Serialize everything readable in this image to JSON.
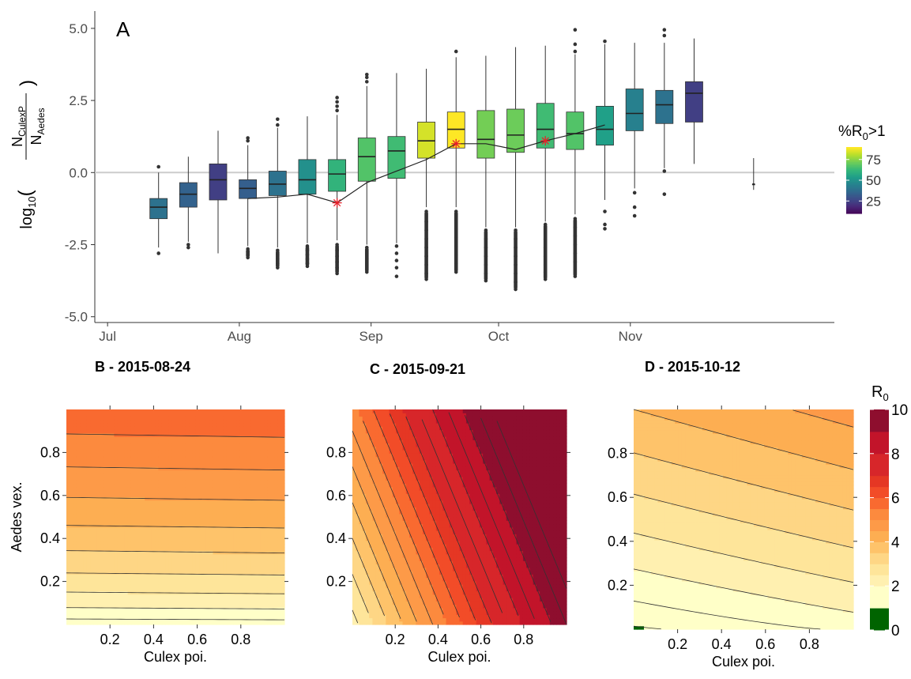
{
  "chart_data": [
    {
      "type": "box",
      "panel_label": "A",
      "ylabel": "log10(N_CulexP / N_Aedes)",
      "ylim": [
        -5.2,
        5.6
      ],
      "yticks": [
        -5.0,
        -2.5,
        0.0,
        2.5,
        5.0
      ],
      "ytick_labels": [
        "-5.0",
        "-2.5",
        "0.0",
        "2.5",
        "5.0"
      ],
      "x_tick_labels": [
        "Jul",
        "Aug",
        "Sep",
        "Oct",
        "Nov"
      ],
      "x_tick_dates": [
        "2015-07-01",
        "2015-08-01",
        "2015-09-01",
        "2015-10-01",
        "2015-11-01"
      ],
      "xlim": [
        "2015-06-28",
        "2015-12-19"
      ],
      "reference_line": 0.0,
      "grid": false,
      "legend": {
        "title": "%R0>1",
        "placement": "right",
        "ticks": [
          75,
          50,
          25
        ],
        "colormap": "viridis",
        "range": [
          10,
          90
        ]
      },
      "boxes": [
        {
          "date": "2015-07-13",
          "q1": -1.6,
          "median": -1.2,
          "q3": -0.9,
          "whisker_low": -2.6,
          "whisker_high": 0.0,
          "pct_r0_gt1": 40,
          "outliers": [
            0.2,
            -2.8
          ]
        },
        {
          "date": "2015-07-20",
          "q1": -1.2,
          "median": -0.75,
          "q3": -0.35,
          "whisker_low": -2.4,
          "whisker_high": 0.55,
          "pct_r0_gt1": 35,
          "outliers": [
            -2.5,
            -2.6
          ]
        },
        {
          "date": "2015-07-27",
          "q1": -0.95,
          "median": -0.25,
          "q3": 0.3,
          "whisker_low": -2.8,
          "whisker_high": 1.45,
          "pct_r0_gt1": 25,
          "outliers": []
        },
        {
          "date": "2015-08-03",
          "q1": -0.9,
          "median": -0.55,
          "q3": -0.25,
          "whisker_low": -2.55,
          "whisker_high": 0.95,
          "pct_r0_gt1": 34,
          "outliers": [
            1.1,
            1.2,
            -2.65,
            -2.75,
            -2.85,
            -2.95
          ]
        },
        {
          "date": "2015-08-10",
          "q1": -0.8,
          "median": -0.4,
          "q3": 0.05,
          "whisker_low": -2.6,
          "whisker_high": 1.55,
          "pct_r0_gt1": 40,
          "outliers": [
            1.85,
            1.65,
            -2.7,
            -2.85,
            -3.0,
            -3.15,
            -3.3
          ]
        },
        {
          "date": "2015-08-17",
          "q1": -0.75,
          "median": -0.25,
          "q3": 0.45,
          "whisker_low": -2.45,
          "whisker_high": 1.95,
          "pct_r0_gt1": 50,
          "outliers": [
            -2.55,
            -2.7,
            -2.85,
            -3.0,
            -3.15,
            -3.25
          ]
        },
        {
          "date": "2015-08-24",
          "q1": -0.65,
          "median": -0.05,
          "q3": 0.45,
          "whisker_low": -2.35,
          "whisker_high": 2.0,
          "pct_r0_gt1": 62,
          "outliers": [
            2.15,
            2.3,
            2.45,
            2.6,
            -2.5,
            -2.7,
            -2.9,
            -3.1,
            -3.3,
            -3.5
          ]
        },
        {
          "date": "2015-08-31",
          "q1": -0.3,
          "median": 0.55,
          "q3": 1.2,
          "whisker_low": -2.5,
          "whisker_high": 3.0,
          "pct_r0_gt1": 68,
          "outliers": [
            3.15,
            3.3,
            3.4,
            -2.6,
            -2.8,
            -3.0,
            -3.2,
            -3.45
          ]
        },
        {
          "date": "2015-09-07",
          "q1": -0.2,
          "median": 0.75,
          "q3": 1.25,
          "whisker_low": -2.45,
          "whisker_high": 3.45,
          "pct_r0_gt1": 65,
          "outliers": [
            -2.55,
            -2.8,
            -3.05,
            -3.3,
            -3.6
          ]
        },
        {
          "date": "2015-09-14",
          "q1": 0.5,
          "median": 1.1,
          "q3": 1.75,
          "whisker_low": -1.2,
          "whisker_high": 3.6,
          "pct_r0_gt1": 85,
          "outliers": [
            -1.35,
            -1.7,
            -2.0,
            -2.3,
            -2.6,
            -2.9,
            -3.2,
            -3.5,
            -3.7
          ]
        },
        {
          "date": "2015-09-21",
          "q1": 0.85,
          "median": 1.5,
          "q3": 2.1,
          "whisker_low": -1.2,
          "whisker_high": 4.0,
          "pct_r0_gt1": 90,
          "outliers": [
            4.2,
            -1.35,
            -1.65,
            -1.95,
            -2.25,
            -2.55,
            -2.85,
            -3.15,
            -3.45
          ]
        },
        {
          "date": "2015-09-28",
          "q1": 0.5,
          "median": 1.15,
          "q3": 2.15,
          "whisker_low": -1.9,
          "whisker_high": 4.05,
          "pct_r0_gt1": 73,
          "outliers": [
            -2.0,
            -2.3,
            -2.6,
            -2.9,
            -3.2,
            -3.5,
            -3.75
          ]
        },
        {
          "date": "2015-10-05",
          "q1": 0.7,
          "median": 1.3,
          "q3": 2.2,
          "whisker_low": -1.9,
          "whisker_high": 4.35,
          "pct_r0_gt1": 72,
          "outliers": [
            -2.0,
            -2.3,
            -2.6,
            -2.9,
            -3.2,
            -3.5,
            -3.8,
            -4.05
          ]
        },
        {
          "date": "2015-10-12",
          "q1": 0.85,
          "median": 1.5,
          "q3": 2.4,
          "whisker_low": -1.7,
          "whisker_high": 4.4,
          "pct_r0_gt1": 65,
          "outliers": [
            -1.8,
            -2.3,
            -2.6,
            -2.9,
            -3.2,
            -3.45,
            -3.7
          ]
        },
        {
          "date": "2015-10-19",
          "q1": 0.8,
          "median": 1.35,
          "q3": 2.1,
          "whisker_low": -1.45,
          "whisker_high": 4.1,
          "pct_r0_gt1": 68,
          "outliers": [
            4.2,
            4.45,
            4.95,
            -1.6,
            -1.9,
            -2.2,
            -2.5,
            -2.8,
            -3.1,
            -3.6
          ]
        },
        {
          "date": "2015-10-26",
          "q1": 0.95,
          "median": 1.5,
          "q3": 2.3,
          "whisker_low": -0.95,
          "whisker_high": 4.45,
          "pct_r0_gt1": 55,
          "outliers": [
            4.55,
            -1.35,
            -1.8,
            -1.95
          ]
        },
        {
          "date": "2015-11-02",
          "q1": 1.45,
          "median": 2.05,
          "q3": 2.9,
          "whisker_low": -0.55,
          "whisker_high": 4.5,
          "pct_r0_gt1": 45,
          "outliers": [
            -0.7,
            -1.2,
            -1.5
          ]
        },
        {
          "date": "2015-11-09",
          "q1": 1.7,
          "median": 2.35,
          "q3": 2.85,
          "whisker_low": 0.15,
          "whisker_high": 4.5,
          "pct_r0_gt1": 40,
          "outliers": [
            4.75,
            4.95,
            0.05,
            -0.75
          ]
        },
        {
          "date": "2015-11-16",
          "q1": 1.75,
          "median": 2.75,
          "q3": 3.15,
          "whisker_low": 0.3,
          "whisker_high": 4.65,
          "pct_r0_gt1": 25,
          "outliers": []
        },
        {
          "date": "2015-11-30",
          "q1": -0.4,
          "median": -0.4,
          "q3": -0.4,
          "whisker_low": -0.6,
          "whisker_high": 0.5,
          "pct_r0_gt1": 10,
          "outliers": []
        }
      ],
      "line": {
        "x": [
          "2015-08-03",
          "2015-08-10",
          "2015-08-17",
          "2015-08-24",
          "2015-08-31",
          "2015-09-07",
          "2015-09-14",
          "2015-09-21",
          "2015-09-28",
          "2015-10-05",
          "2015-10-12",
          "2015-10-19",
          "2015-10-26"
        ],
        "y": [
          -0.9,
          -0.85,
          -0.75,
          -1.05,
          -0.35,
          0.05,
          0.45,
          1.0,
          1.0,
          0.8,
          1.1,
          1.35,
          1.65
        ]
      },
      "markers": [
        {
          "x": "2015-08-24",
          "y": -1.05
        },
        {
          "x": "2015-09-21",
          "y": 1.0
        },
        {
          "x": "2015-10-12",
          "y": 1.1
        }
      ]
    },
    {
      "type": "contour",
      "title": "B - 2015-08-24",
      "xlabel": "Culex poi.",
      "ylabel": "Aedes vex.",
      "xlim": [
        0,
        1
      ],
      "ylim": [
        0,
        1
      ],
      "xticks": [
        0.2,
        0.4,
        0.6,
        0.8
      ],
      "yticks": [
        0.2,
        0.4,
        0.6,
        0.8
      ],
      "r0_model": {
        "base": 1.0,
        "coef_culex": 0.05,
        "coef_aedes": 4.85,
        "aedes_exponent": 0.62
      }
    },
    {
      "type": "contour",
      "title": "C - 2015-09-21",
      "xlabel": "Culex poi.",
      "ylabel": "",
      "xlim": [
        0,
        1
      ],
      "ylim": [
        0,
        1
      ],
      "xticks": [
        0.2,
        0.4,
        0.6,
        0.8
      ],
      "yticks": [
        0.2,
        0.4,
        0.6,
        0.8
      ],
      "r0_model": {
        "base": 2.3,
        "coef_culex": 7.2,
        "coef_aedes": 3.0,
        "aedes_exponent": 1.0
      }
    },
    {
      "type": "contour",
      "title": "D - 2015-10-12",
      "xlabel": "Culex poi.",
      "ylabel": "",
      "xlim": [
        0,
        1
      ],
      "ylim": [
        0,
        1
      ],
      "xticks": [
        0.2,
        0.4,
        0.6,
        0.8
      ],
      "yticks": [
        0.2,
        0.4,
        0.6,
        0.8
      ],
      "r0_model": {
        "base": 0.9,
        "coef_culex": 0.7,
        "coef_aedes": 3.1,
        "aedes_exponent": 0.8
      }
    }
  ],
  "r0_legend": {
    "title": "R0",
    "ticks": [
      0,
      2,
      4,
      6,
      8,
      10
    ],
    "bins": [
      {
        "low": 0,
        "high": 1,
        "color": "#006400"
      },
      {
        "low": 1,
        "high": 2,
        "color": "#ffffc8"
      },
      {
        "low": 2,
        "high": 2.5,
        "color": "#fff0b0"
      },
      {
        "low": 2.5,
        "high": 3,
        "color": "#fee59a"
      },
      {
        "low": 3,
        "high": 3.5,
        "color": "#fed685"
      },
      {
        "low": 3.5,
        "high": 4,
        "color": "#fec36a"
      },
      {
        "low": 4,
        "high": 4.5,
        "color": "#fdae52"
      },
      {
        "low": 4.5,
        "high": 5,
        "color": "#fd9a48"
      },
      {
        "low": 5,
        "high": 5.5,
        "color": "#fc8a3e"
      },
      {
        "low": 5.5,
        "high": 6,
        "color": "#f96a30"
      },
      {
        "low": 6,
        "high": 6.5,
        "color": "#f24c28"
      },
      {
        "low": 6.5,
        "high": 7,
        "color": "#e53724"
      },
      {
        "low": 7,
        "high": 8,
        "color": "#d7262a"
      },
      {
        "low": 8,
        "high": 9,
        "color": "#c2142a"
      },
      {
        "low": 9,
        "high": 10,
        "color": "#8e0e2e"
      }
    ]
  }
}
